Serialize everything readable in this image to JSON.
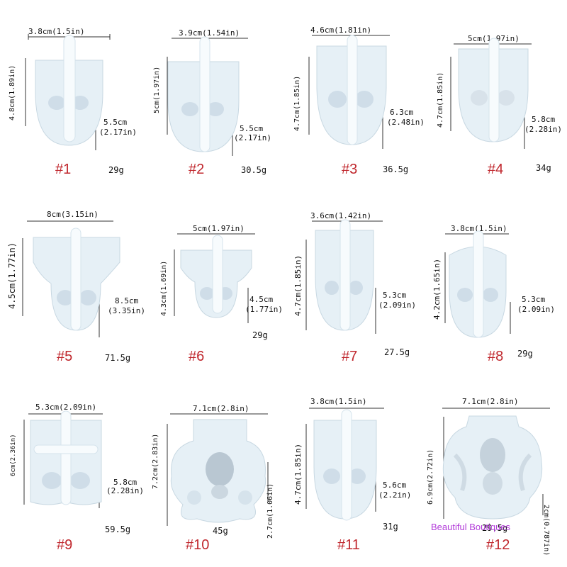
{
  "items": [
    {
      "number": "#1",
      "weight": "29g",
      "width": "3.8cm(1.5in)",
      "height": "4.8cm(1.89in)",
      "depth_cm": "5.5cm",
      "depth_in": "(2.17in)"
    },
    {
      "number": "#2",
      "weight": "30.5g",
      "width": "3.9cm(1.54in)",
      "height": "5cm(1.97in)",
      "depth_cm": "5.5cm",
      "depth_in": "(2.17in)"
    },
    {
      "number": "#3",
      "weight": "36.5g",
      "width": "4.6cm(1.81in)",
      "height": "4.7cm(1.85in)",
      "depth_cm": "6.3cm",
      "depth_in": "(2.48in)"
    },
    {
      "number": "#4",
      "weight": "34g",
      "width": "5cm(1.97in)",
      "height": "4.7cm(1.85in)",
      "depth_cm": "5.8cm",
      "depth_in": "(2.28in)"
    },
    {
      "number": "#5",
      "weight": "71.5g",
      "width": "8cm(3.15in)",
      "height": "4.5cm(1.77in)",
      "depth_cm": "8.5cm",
      "depth_in": "(3.35in)"
    },
    {
      "number": "#6",
      "weight": "29g",
      "width": "5cm(1.97in)",
      "height": "4.3cm(1.69in)",
      "depth_cm": "4.5cm",
      "depth_in": "(1.77in)"
    },
    {
      "number": "#7",
      "weight": "27.5g",
      "width": "3.6cm(1.42in)",
      "height": "4.7cm(1.85in)",
      "depth_cm": "5.3cm",
      "depth_in": "(2.09in)"
    },
    {
      "number": "#8",
      "weight": "29g",
      "width": "3.8cm(1.5in)",
      "height": "4.2cm(1.65in)",
      "depth_cm": "5.3cm",
      "depth_in": "(2.09in)"
    },
    {
      "number": "#9",
      "weight": "59.5g",
      "width": "5.3cm(2.09in)",
      "height": "6cm(2.36in)",
      "depth_cm": "5.8cm",
      "depth_in": "(2.28in)"
    },
    {
      "number": "#10",
      "weight": "45g",
      "width": "7.1cm(2.8in)",
      "height": "7.2cm(2.83in)",
      "depth_cm": "2.7cm(1.06in)",
      "depth_in": ""
    },
    {
      "number": "#11",
      "weight": "31g",
      "width": "3.8cm(1.5in)",
      "height": "4.7cm(1.85in)",
      "depth_cm": "5.6cm",
      "depth_in": "(2.2in)"
    },
    {
      "number": "#12",
      "weight": "29.5g",
      "width": "7.1cm(2.8in)",
      "height": "6.9cm(2.72in)",
      "depth_cm": "2cm(0.787in)",
      "depth_in": ""
    }
  ],
  "watermark": "Beautiful Boutiques",
  "colors": {
    "number": "#c0272d",
    "watermark": "#b23bd9",
    "mold": "#e6f0f6"
  }
}
